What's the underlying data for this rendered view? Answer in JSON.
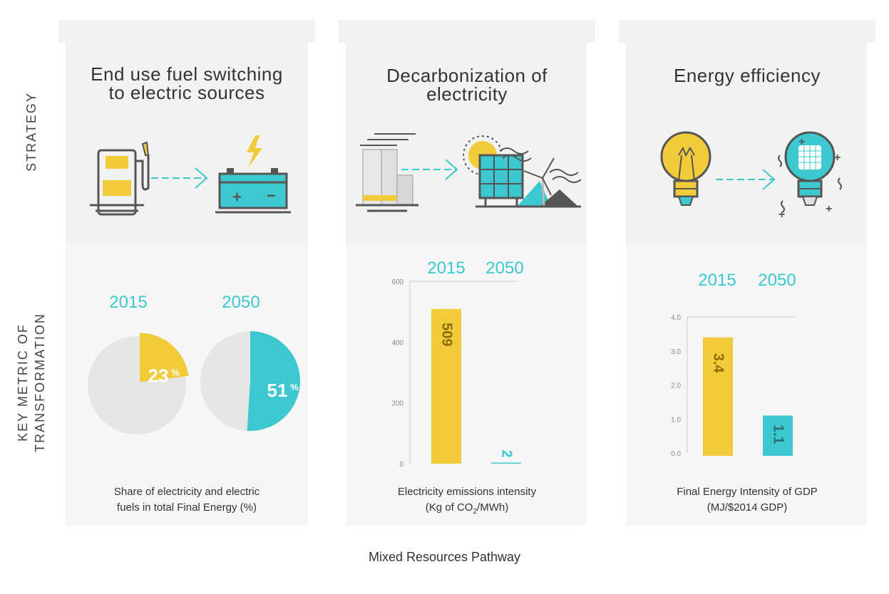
{
  "row_labels": {
    "strategy": "STRATEGY",
    "metric_line1": "KEY METRIC OF",
    "metric_line2": "TRANSFORMATION"
  },
  "colors": {
    "yellow": "#f2cb3a",
    "teal": "#3cc8cf",
    "gray": "#e6e6e6",
    "dark": "#555555"
  },
  "panels": [
    {
      "title_line1": "End use fuel switching",
      "title_line2": "to electric sources",
      "icons": [
        "fuel-pump-icon",
        "arrow-right-icon",
        "battery-icon",
        "lightning-icon"
      ],
      "caption_line1": "Share of electricity and electric",
      "caption_line2": "fuels in total Final Energy (%)"
    },
    {
      "title_line1": "Decarbonization of",
      "title_line2": "electricity",
      "icons": [
        "power-plant-icon",
        "arrow-right-icon",
        "sun-icon",
        "solar-panel-icon",
        "wind-turbine-icon"
      ],
      "caption_line1": "Electricity emissions intensity",
      "caption_line2_pre": "(Kg of CO",
      "caption_line2_sub": "2",
      "caption_line2_post": "/MWh)"
    },
    {
      "title_line1": "Energy efficiency",
      "title_line2": "",
      "icons": [
        "incandescent-bulb-icon",
        "arrow-right-icon",
        "led-bulb-icon"
      ],
      "caption_line1": "Final Energy Intensity of GDP",
      "caption_line2": "(MJ/$2014 GDP)"
    }
  ],
  "chart_data": [
    {
      "type": "pie",
      "title": "Share of electricity and electric fuels in total Final Energy (%)",
      "categories": [
        "2015",
        "2050"
      ],
      "values": [
        23,
        51
      ],
      "unit": "%",
      "value_labels": [
        "23",
        "51"
      ]
    },
    {
      "type": "bar",
      "title": "Electricity emissions intensity (Kg of CO2/MWh)",
      "categories": [
        "2015",
        "2050"
      ],
      "values": [
        509,
        2
      ],
      "value_labels": [
        "509",
        "2"
      ],
      "ylim": [
        0,
        600
      ],
      "yticks": [
        0,
        200,
        400,
        600
      ],
      "ytick_labels": [
        "0",
        "200",
        "400",
        "600"
      ]
    },
    {
      "type": "bar",
      "title": "Final Energy Intensity of GDP (MJ/$2014 GDP)",
      "categories": [
        "2015",
        "2050"
      ],
      "values": [
        3.4,
        1.1
      ],
      "value_labels": [
        "3.4",
        "1.1"
      ],
      "ylim": [
        0,
        4
      ],
      "yticks": [
        0,
        1,
        2,
        3,
        4
      ],
      "ytick_labels": [
        "0.0",
        "1.0",
        "2.0",
        "3.0",
        "4.0"
      ]
    }
  ],
  "footer": "Mixed Resources Pathway"
}
